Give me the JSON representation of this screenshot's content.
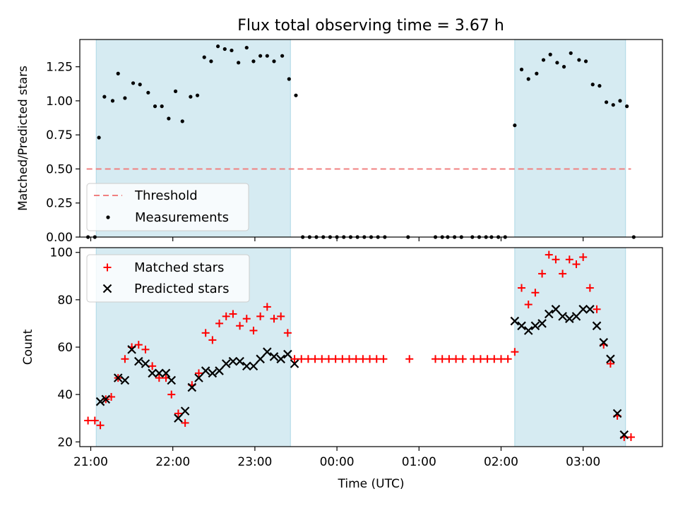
{
  "chart_data": [
    {
      "type": "scatter",
      "title": "Flux total observing time = 3.67 h",
      "ylabel": "Matched/Predicted stars",
      "xlabel": "",
      "xlim": [
        "20:52",
        "03:58"
      ],
      "ylim": [
        0,
        1.45
      ],
      "yticks": [
        "0.00",
        "0.25",
        "0.50",
        "0.75",
        "1.00",
        "1.25"
      ],
      "ytick_values": [
        0,
        0.25,
        0.5,
        0.75,
        1.0,
        1.25
      ],
      "shaded_intervals": [
        [
          "21:04",
          "23:26"
        ],
        [
          "02:10",
          "03:31"
        ]
      ],
      "threshold": {
        "name": "Threshold",
        "value": 0.5,
        "x": [
          "20:57",
          "03:35"
        ],
        "color": "#f08080"
      },
      "legend": {
        "position": "lower-left",
        "entries": [
          "Threshold",
          "Measurements"
        ]
      },
      "series": [
        {
          "name": "Measurements",
          "color": "#000000",
          "points": [
            [
              "20:58",
              0.0
            ],
            [
              "21:03",
              0.0
            ],
            [
              "21:06",
              0.73
            ],
            [
              "21:10",
              1.03
            ],
            [
              "21:16",
              1.0
            ],
            [
              "21:20",
              1.2
            ],
            [
              "21:25",
              1.02
            ],
            [
              "21:31",
              1.13
            ],
            [
              "21:36",
              1.12
            ],
            [
              "21:42",
              1.06
            ],
            [
              "21:47",
              0.96
            ],
            [
              "21:52",
              0.96
            ],
            [
              "21:57",
              0.87
            ],
            [
              "22:02",
              1.07
            ],
            [
              "22:07",
              0.85
            ],
            [
              "22:13",
              1.03
            ],
            [
              "22:18",
              1.04
            ],
            [
              "22:23",
              1.32
            ],
            [
              "22:28",
              1.29
            ],
            [
              "22:33",
              1.4
            ],
            [
              "22:38",
              1.38
            ],
            [
              "22:43",
              1.37
            ],
            [
              "22:48",
              1.28
            ],
            [
              "22:54",
              1.39
            ],
            [
              "22:59",
              1.29
            ],
            [
              "23:04",
              1.33
            ],
            [
              "23:09",
              1.33
            ],
            [
              "23:14",
              1.29
            ],
            [
              "23:20",
              1.33
            ],
            [
              "23:25",
              1.16
            ],
            [
              "23:30",
              1.04
            ],
            [
              "23:35",
              0.0
            ],
            [
              "23:40",
              0.0
            ],
            [
              "23:45",
              0.0
            ],
            [
              "23:50",
              0.0
            ],
            [
              "23:55",
              0.0
            ],
            [
              "00:00",
              0.0
            ],
            [
              "00:05",
              0.0
            ],
            [
              "00:10",
              0.0
            ],
            [
              "00:15",
              0.0
            ],
            [
              "00:20",
              0.0
            ],
            [
              "00:25",
              0.0
            ],
            [
              "00:30",
              0.0
            ],
            [
              "00:35",
              0.0
            ],
            [
              "00:52",
              0.0
            ],
            [
              "01:12",
              0.0
            ],
            [
              "01:17",
              0.0
            ],
            [
              "01:21",
              0.0
            ],
            [
              "01:26",
              0.0
            ],
            [
              "01:31",
              0.0
            ],
            [
              "01:39",
              0.0
            ],
            [
              "01:44",
              0.0
            ],
            [
              "01:49",
              0.0
            ],
            [
              "01:53",
              0.0
            ],
            [
              "01:58",
              0.0
            ],
            [
              "02:03",
              0.0
            ],
            [
              "02:10",
              0.82
            ],
            [
              "02:15",
              1.23
            ],
            [
              "02:20",
              1.16
            ],
            [
              "02:26",
              1.2
            ],
            [
              "02:31",
              1.3
            ],
            [
              "02:36",
              1.34
            ],
            [
              "02:41",
              1.28
            ],
            [
              "02:46",
              1.25
            ],
            [
              "02:51",
              1.35
            ],
            [
              "02:57",
              1.3
            ],
            [
              "03:02",
              1.29
            ],
            [
              "03:07",
              1.12
            ],
            [
              "03:12",
              1.11
            ],
            [
              "03:17",
              0.99
            ],
            [
              "03:22",
              0.97
            ],
            [
              "03:27",
              1.0
            ],
            [
              "03:32",
              0.96
            ],
            [
              "03:37",
              0.0
            ]
          ]
        }
      ]
    },
    {
      "type": "scatter",
      "title": "",
      "ylabel": "Count",
      "xlabel": "Time (UTC)",
      "xlim": [
        "20:52",
        "03:58"
      ],
      "ylim": [
        18,
        102
      ],
      "yticks": [
        "20",
        "40",
        "60",
        "80",
        "100"
      ],
      "ytick_values": [
        20,
        40,
        60,
        80,
        100
      ],
      "xticks": [
        "21:00",
        "22:00",
        "23:00",
        "00:00",
        "01:00",
        "02:00",
        "03:00"
      ],
      "shaded_intervals": [
        [
          "21:04",
          "23:26"
        ],
        [
          "02:10",
          "03:31"
        ]
      ],
      "legend": {
        "position": "upper-left",
        "entries": [
          "Matched stars",
          "Predicted stars"
        ]
      },
      "series": [
        {
          "name": "Matched stars",
          "color": "#ff0000",
          "marker": "plus",
          "points": [
            [
              "20:58",
              29
            ],
            [
              "21:03",
              29
            ],
            [
              "21:07",
              27
            ],
            [
              "21:11",
              38
            ],
            [
              "21:15",
              39
            ],
            [
              "21:20",
              47
            ],
            [
              "21:25",
              55
            ],
            [
              "21:30",
              60
            ],
            [
              "21:35",
              61
            ],
            [
              "21:40",
              59
            ],
            [
              "21:45",
              52
            ],
            [
              "21:50",
              47
            ],
            [
              "21:55",
              47
            ],
            [
              "21:59",
              40
            ],
            [
              "22:04",
              32
            ],
            [
              "22:09",
              28
            ],
            [
              "22:14",
              44
            ],
            [
              "22:19",
              49
            ],
            [
              "22:24",
              66
            ],
            [
              "22:29",
              63
            ],
            [
              "22:34",
              70
            ],
            [
              "22:39",
              73
            ],
            [
              "22:44",
              74
            ],
            [
              "22:49",
              69
            ],
            [
              "22:54",
              72
            ],
            [
              "22:59",
              67
            ],
            [
              "23:04",
              73
            ],
            [
              "23:09",
              77
            ],
            [
              "23:14",
              72
            ],
            [
              "23:19",
              73
            ],
            [
              "23:24",
              66
            ],
            [
              "23:29",
              55
            ],
            [
              "23:34",
              55
            ],
            [
              "23:39",
              55
            ],
            [
              "23:44",
              55
            ],
            [
              "23:49",
              55
            ],
            [
              "23:54",
              55
            ],
            [
              "23:59",
              55
            ],
            [
              "00:04",
              55
            ],
            [
              "00:09",
              55
            ],
            [
              "00:14",
              55
            ],
            [
              "00:19",
              55
            ],
            [
              "00:24",
              55
            ],
            [
              "00:29",
              55
            ],
            [
              "00:34",
              55
            ],
            [
              "00:53",
              55
            ],
            [
              "01:12",
              55
            ],
            [
              "01:17",
              55
            ],
            [
              "01:22",
              55
            ],
            [
              "01:27",
              55
            ],
            [
              "01:32",
              55
            ],
            [
              "01:40",
              55
            ],
            [
              "01:45",
              55
            ],
            [
              "01:50",
              55
            ],
            [
              "01:55",
              55
            ],
            [
              "02:00",
              55
            ],
            [
              "02:05",
              55
            ],
            [
              "02:10",
              58
            ],
            [
              "02:15",
              85
            ],
            [
              "02:20",
              78
            ],
            [
              "02:25",
              83
            ],
            [
              "02:30",
              91
            ],
            [
              "02:35",
              99
            ],
            [
              "02:40",
              97
            ],
            [
              "02:45",
              91
            ],
            [
              "02:50",
              97
            ],
            [
              "02:55",
              95
            ],
            [
              "03:00",
              98
            ],
            [
              "03:05",
              85
            ],
            [
              "03:10",
              76
            ],
            [
              "03:15",
              61
            ],
            [
              "03:20",
              53
            ],
            [
              "03:25",
              31
            ],
            [
              "03:30",
              22
            ],
            [
              "03:35",
              22
            ]
          ]
        },
        {
          "name": "Predicted stars",
          "color": "#000000",
          "marker": "x",
          "points": [
            [
              "21:07",
              37
            ],
            [
              "21:11",
              38
            ],
            [
              "21:20",
              47
            ],
            [
              "21:25",
              46
            ],
            [
              "21:30",
              59
            ],
            [
              "21:35",
              54
            ],
            [
              "21:40",
              53
            ],
            [
              "21:45",
              49
            ],
            [
              "21:50",
              49
            ],
            [
              "21:55",
              49
            ],
            [
              "21:59",
              46
            ],
            [
              "22:04",
              30
            ],
            [
              "22:09",
              33
            ],
            [
              "22:14",
              43
            ],
            [
              "22:19",
              47
            ],
            [
              "22:24",
              50
            ],
            [
              "22:29",
              49
            ],
            [
              "22:34",
              50
            ],
            [
              "22:39",
              53
            ],
            [
              "22:44",
              54
            ],
            [
              "22:49",
              54
            ],
            [
              "22:54",
              52
            ],
            [
              "22:59",
              52
            ],
            [
              "23:04",
              55
            ],
            [
              "23:09",
              58
            ],
            [
              "23:14",
              56
            ],
            [
              "23:19",
              55
            ],
            [
              "23:24",
              57
            ],
            [
              "23:29",
              53
            ],
            [
              "02:10",
              71
            ],
            [
              "02:15",
              69
            ],
            [
              "02:20",
              67
            ],
            [
              "02:25",
              69
            ],
            [
              "02:30",
              70
            ],
            [
              "02:35",
              74
            ],
            [
              "02:40",
              76
            ],
            [
              "02:45",
              73
            ],
            [
              "02:50",
              72
            ],
            [
              "02:55",
              73
            ],
            [
              "03:00",
              76
            ],
            [
              "03:05",
              76
            ],
            [
              "03:10",
              69
            ],
            [
              "03:15",
              62
            ],
            [
              "03:20",
              55
            ],
            [
              "03:25",
              32
            ],
            [
              "03:30",
              23
            ]
          ]
        }
      ]
    }
  ],
  "colors": {
    "shade": "#add8e6",
    "shade_alpha": 0.5,
    "threshold": "#f08080"
  }
}
